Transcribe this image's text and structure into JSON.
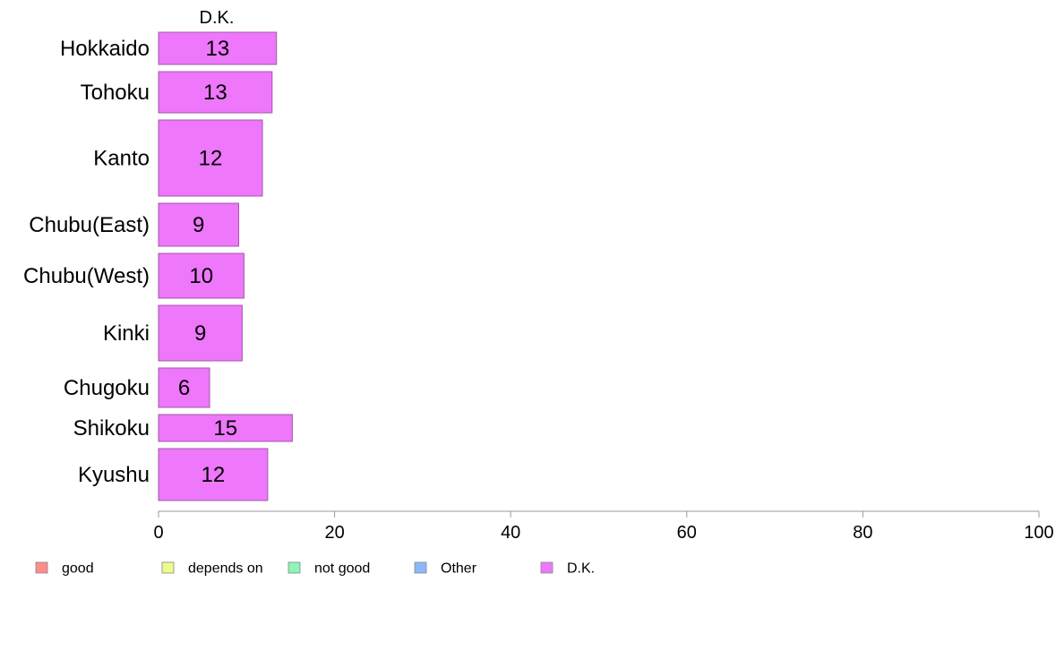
{
  "chart_data": {
    "type": "bar",
    "orientation": "horizontal",
    "panel_title": "D.K.",
    "categories": [
      "Hokkaido",
      "Tohoku",
      "Kanto",
      "Chubu(East)",
      "Chubu(West)",
      "Kinki",
      "Chugoku",
      "Shikoku",
      "Kyushu"
    ],
    "values": [
      13,
      13,
      12,
      9,
      10,
      9,
      6,
      15,
      12
    ],
    "value_labels": [
      "13",
      "13",
      "12",
      "9",
      "10",
      "9",
      "6",
      "15",
      "12"
    ],
    "exact_values": [
      13.4,
      12.9,
      11.8,
      9.1,
      9.7,
      9.5,
      5.8,
      15.2,
      12.4
    ],
    "bar_relative_thickness": [
      36,
      46,
      85,
      48,
      50,
      62,
      44,
      30,
      58
    ],
    "xlim": [
      0,
      100
    ],
    "xticks": [
      0,
      20,
      40,
      60,
      80,
      100
    ],
    "xtick_labels": [
      "0",
      "20",
      "40",
      "60",
      "80",
      "100"
    ],
    "xlabel": "",
    "ylabel": "",
    "grid": false,
    "bar_color": "#ee77fb",
    "bar_edge_color": "#a05aa8",
    "axis_color": "#999999",
    "legend_position": "bottom-left",
    "legend": [
      {
        "label": "good",
        "color": "#ff8e8a"
      },
      {
        "label": "depends on",
        "color": "#edfb8c"
      },
      {
        "label": "not good",
        "color": "#8ef5b6"
      },
      {
        "label": "Other",
        "color": "#8cb8fa"
      },
      {
        "label": "D.K.",
        "color": "#ee77fb"
      }
    ]
  }
}
